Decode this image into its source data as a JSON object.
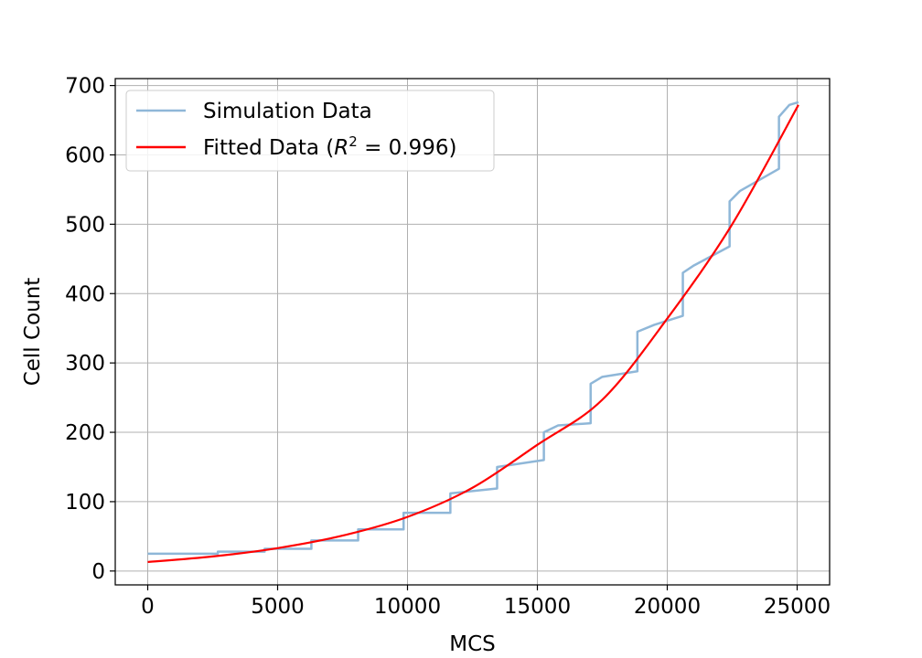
{
  "chart_data": {
    "type": "line",
    "title": "",
    "xlabel": "MCS",
    "ylabel": "Cell Count",
    "xlim": [
      -1250,
      26250
    ],
    "ylim": [
      -20,
      710
    ],
    "xticks": [
      0,
      5000,
      10000,
      15000,
      20000,
      25000
    ],
    "yticks": [
      0,
      100,
      200,
      300,
      400,
      500,
      600,
      700
    ],
    "grid": true,
    "legend_position": "top-left",
    "series": [
      {
        "name": "Simulation Data",
        "style": "step",
        "color": "#8fb7d8",
        "points": [
          [
            0,
            25
          ],
          [
            2700,
            25
          ],
          [
            2700,
            28
          ],
          [
            4500,
            28
          ],
          [
            4500,
            32
          ],
          [
            6300,
            32
          ],
          [
            6300,
            44
          ],
          [
            8100,
            44
          ],
          [
            8100,
            60
          ],
          [
            9850,
            60
          ],
          [
            9850,
            84
          ],
          [
            11650,
            84
          ],
          [
            11650,
            112
          ],
          [
            13450,
            119
          ],
          [
            13450,
            150
          ],
          [
            15250,
            160
          ],
          [
            15250,
            200
          ],
          [
            15800,
            210
          ],
          [
            17050,
            213
          ],
          [
            17050,
            270
          ],
          [
            17500,
            280
          ],
          [
            18850,
            288
          ],
          [
            18850,
            345
          ],
          [
            19500,
            355
          ],
          [
            20600,
            368
          ],
          [
            20600,
            430
          ],
          [
            21000,
            440
          ],
          [
            22400,
            468
          ],
          [
            22400,
            533
          ],
          [
            22800,
            548
          ],
          [
            24300,
            580
          ],
          [
            24300,
            655
          ],
          [
            24700,
            672
          ],
          [
            25050,
            676
          ]
        ]
      },
      {
        "name": "Fitted Data (R² = 0.996)",
        "legend_prefix": "Fitted Data (",
        "legend_r2_symbol": "R",
        "legend_r2_sup": "2",
        "legend_r2_value": " = 0.996)",
        "style": "line",
        "color": "#ff0000",
        "x": [
          0,
          2500,
          5000,
          7500,
          10000,
          12500,
          15000,
          17500,
          20000,
          22500,
          25050
        ],
        "y": [
          13,
          21,
          33,
          51,
          78,
          120,
          182,
          247,
          364,
          500,
          672
        ]
      }
    ]
  }
}
